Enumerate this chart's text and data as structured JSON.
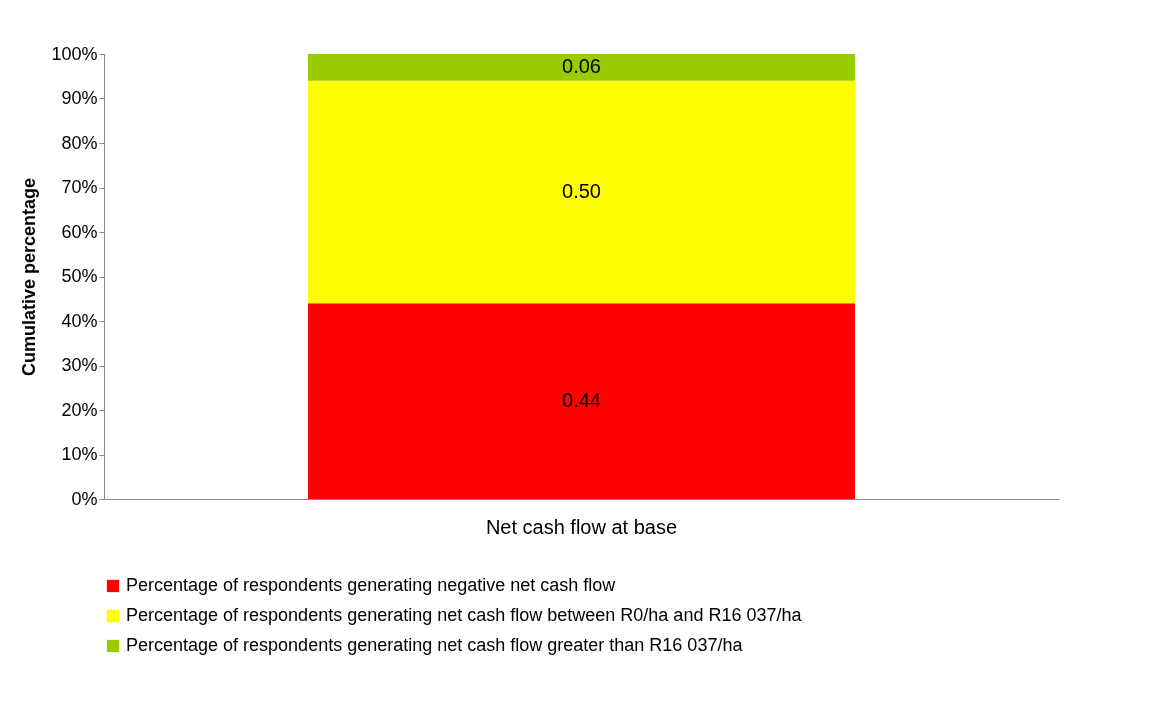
{
  "chart_data": {
    "type": "bar",
    "stacked": true,
    "categories": [
      "Net cash flow at base"
    ],
    "ylabel": "Cumulative percentage",
    "series": [
      {
        "name": "Percentage of respondents generating negative net cash flow",
        "color": "#ff0000",
        "values": [
          0.44
        ],
        "value_labels": [
          "0.44"
        ]
      },
      {
        "name": "Percentage of respondents generating net cash flow between R0/ha and R16 037/ha",
        "color": "#ffff00",
        "values": [
          0.5
        ],
        "value_labels": [
          "0.50"
        ]
      },
      {
        "name": "Percentage of respondents generating net cash flow greater than R16 037/ha",
        "color": "#99cc00",
        "values": [
          0.06
        ],
        "value_labels": [
          "0.06"
        ]
      }
    ],
    "ylim": [
      0,
      1
    ],
    "yticks": [
      {
        "value": 0,
        "label": "0%"
      },
      {
        "value": 0.1,
        "label": "10%"
      },
      {
        "value": 0.2,
        "label": "20%"
      },
      {
        "value": 0.3,
        "label": "30%"
      },
      {
        "value": 0.4,
        "label": "40%"
      },
      {
        "value": 0.5,
        "label": "50%"
      },
      {
        "value": 0.6,
        "label": "60%"
      },
      {
        "value": 0.7,
        "label": "70%"
      },
      {
        "value": 0.8,
        "label": "80%"
      },
      {
        "value": 0.9,
        "label": "90%"
      },
      {
        "value": 1,
        "label": "100%"
      }
    ],
    "grid": false,
    "legend": "bottom"
  }
}
